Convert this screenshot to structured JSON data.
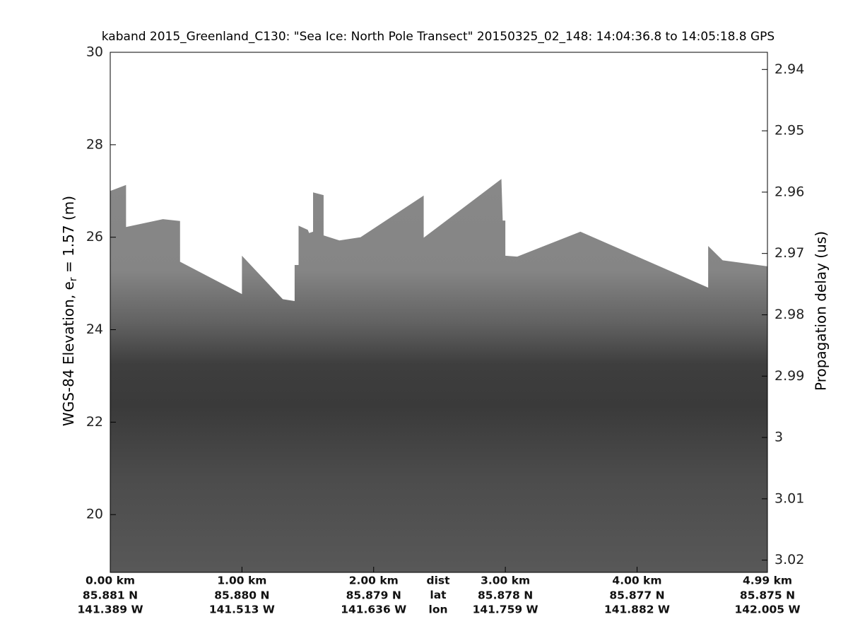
{
  "chart_data": {
    "type": "echogram",
    "title": "kaband 2015_Greenland_C130: \"Sea Ice: North Pole Transect\"  20150325_02_148: 14:04:36.8 to 14:05:18.8 GPS",
    "ylabel": {
      "main": "WGS-84 Elevation, e",
      "sub": "r",
      "rest": " = 1.57 (m)"
    },
    "y2label": "Propagation delay (us)",
    "x": [
      0,
      0.12,
      0.12,
      0.4,
      0.53,
      0.53,
      1.0,
      1.0,
      1.31,
      1.4,
      1.4,
      1.43,
      1.43,
      1.5,
      1.51,
      1.54,
      1.54,
      1.62,
      1.62,
      1.74,
      1.9,
      2.38,
      2.38,
      2.97,
      2.98,
      3.0,
      3.0,
      3.09,
      3.57,
      4.54,
      4.54,
      4.65,
      4.99
    ],
    "values": [
      27.0,
      27.13,
      26.22,
      26.39,
      26.35,
      25.47,
      24.77,
      25.6,
      24.66,
      24.62,
      25.4,
      25.4,
      26.25,
      26.16,
      26.09,
      26.12,
      26.97,
      26.91,
      26.04,
      25.93,
      26.0,
      26.9,
      25.99,
      27.26,
      26.36,
      26.36,
      25.6,
      25.58,
      26.12,
      24.91,
      25.81,
      25.5,
      25.37
    ],
    "xlim": [
      0,
      4.99
    ],
    "ylim": [
      18.75,
      30
    ],
    "y2lim": [
      2.9372,
      3.022
    ],
    "y2reverse": true,
    "yticks": [
      20,
      22,
      24,
      26,
      28,
      30
    ],
    "y2ticks": [
      2.94,
      2.95,
      2.96,
      2.97,
      2.98,
      2.99,
      3,
      3.01,
      3.02
    ],
    "xticks": [
      {
        "value": 0,
        "label": "0.00 km"
      },
      {
        "value": 1,
        "label": "1.00 km"
      },
      {
        "value": 2,
        "label": "2.00 km"
      },
      {
        "value": 3,
        "label": "3.00 km"
      },
      {
        "value": 4,
        "label": "4.00 km"
      },
      {
        "value": 4.99,
        "label": "4.99 km"
      }
    ],
    "lat_labels": [
      "85.881 N",
      "85.880 N",
      "85.879 N",
      "85.878 N",
      "85.877 N",
      "85.875 N"
    ],
    "lon_labels": [
      "141.389 W",
      "141.513 W",
      "141.636 W",
      "141.759 W",
      "141.882 W",
      "142.005 W"
    ],
    "row_labels": [
      "dist",
      "lat",
      "lon"
    ]
  }
}
